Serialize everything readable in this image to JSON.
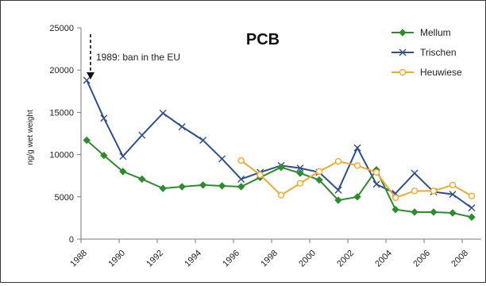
{
  "chart_data": {
    "type": "line",
    "title": "PCB",
    "xlabel": "",
    "ylabel": "ng/g wet weight",
    "xlim": [
      1988,
      2009
    ],
    "ylim": [
      0,
      25000
    ],
    "x_ticks": [
      "1988",
      "1990",
      "1992",
      "1994",
      "1996",
      "1998",
      "2000",
      "2002",
      "2004",
      "2006",
      "2008"
    ],
    "y_ticks": [
      "0",
      "5000",
      "10000",
      "15000",
      "20000",
      "25000"
    ],
    "grid": false,
    "legend_position": "top-right",
    "annotation": {
      "text": "1989: ban in the EU",
      "x": 1989
    },
    "series": [
      {
        "name": "Mellum",
        "color": "#2e8b2e",
        "marker": "diamond",
        "x": [
          1988.3,
          1989.2,
          1990.2,
          1991.2,
          1992.3,
          1993.3,
          1994.4,
          1995.4,
          1996.4,
          1997.4,
          1998.5,
          1999.5,
          2000.5,
          2001.5,
          2002.5,
          2003.5,
          2004.5,
          2005.5,
          2006.5,
          2007.5,
          2008.5
        ],
        "values": [
          11700,
          9900,
          8000,
          7100,
          6000,
          6200,
          6400,
          6300,
          6200,
          7300,
          8500,
          7800,
          7000,
          4600,
          5000,
          8200,
          3500,
          3200,
          3200,
          3100,
          2600
        ]
      },
      {
        "name": "Trischen",
        "color": "#2f4f8f",
        "marker": "x",
        "x": [
          1988.3,
          1989.2,
          1990.2,
          1991.2,
          1992.3,
          1993.3,
          1994.4,
          1995.4,
          1996.4,
          1997.4,
          1998.5,
          1999.5,
          2000.5,
          2001.5,
          2002.5,
          2003.5,
          2004.5,
          2005.5,
          2006.5,
          2007.5,
          2008.5
        ],
        "values": [
          18800,
          14300,
          9800,
          12300,
          14900,
          13300,
          11700,
          9500,
          7100,
          7900,
          8700,
          8400,
          7900,
          5800,
          10800,
          6500,
          5400,
          7800,
          5600,
          5300,
          3700
        ]
      },
      {
        "name": "Heuwiese",
        "color": "#f0a830",
        "marker": "circle",
        "x": [
          1996.4,
          1997.4,
          1998.5,
          1999.5,
          2000.5,
          2001.5,
          2002.5,
          2003.5,
          2004.5,
          2005.5,
          2006.5,
          2007.5,
          2008.5
        ],
        "values": [
          9300,
          7600,
          5200,
          6600,
          8000,
          9200,
          8700,
          7900,
          4900,
          5700,
          5700,
          6400,
          5100
        ]
      }
    ]
  }
}
